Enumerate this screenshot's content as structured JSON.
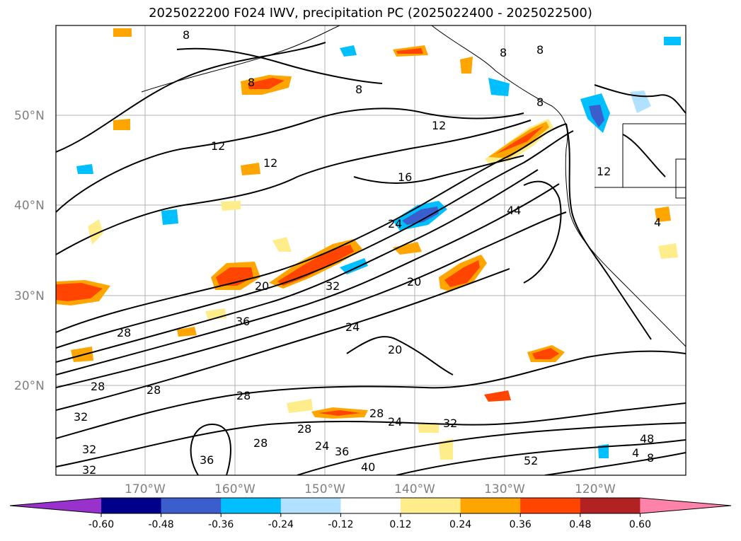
{
  "title": "2025022200 F024 IWV, precipitation PC (2025022400 - 2025022500)",
  "map": {
    "lat_labels": [
      "50°N",
      "40°N",
      "30°N",
      "20°N"
    ],
    "lon_labels": [
      "170°W",
      "160°W",
      "150°W",
      "140°W",
      "130°W",
      "120°W"
    ],
    "contour_labels": [
      "8",
      "8",
      "8",
      "8",
      "8",
      "8",
      "12",
      "12",
      "12",
      "12",
      "16",
      "20",
      "20",
      "20",
      "24",
      "24",
      "24",
      "24",
      "28",
      "28",
      "28",
      "28",
      "28",
      "28",
      "28",
      "32",
      "32",
      "32",
      "32",
      "32",
      "36",
      "36",
      "36",
      "40",
      "44",
      "48",
      "52",
      "4",
      "8"
    ]
  },
  "colorbar": {
    "ticks": [
      "-0.60",
      "-0.48",
      "-0.36",
      "-0.24",
      "-0.12",
      "0.12",
      "0.24",
      "0.36",
      "0.48",
      "0.60"
    ],
    "colors": [
      "#9932cc",
      "#00008b",
      "#3a5fcd",
      "#00bfff",
      "#b0e2ff",
      "#ffffff",
      "#ffec8b",
      "#ffa500",
      "#ff4500",
      "#b22222",
      "#ff82ab"
    ],
    "extend": "both"
  }
}
